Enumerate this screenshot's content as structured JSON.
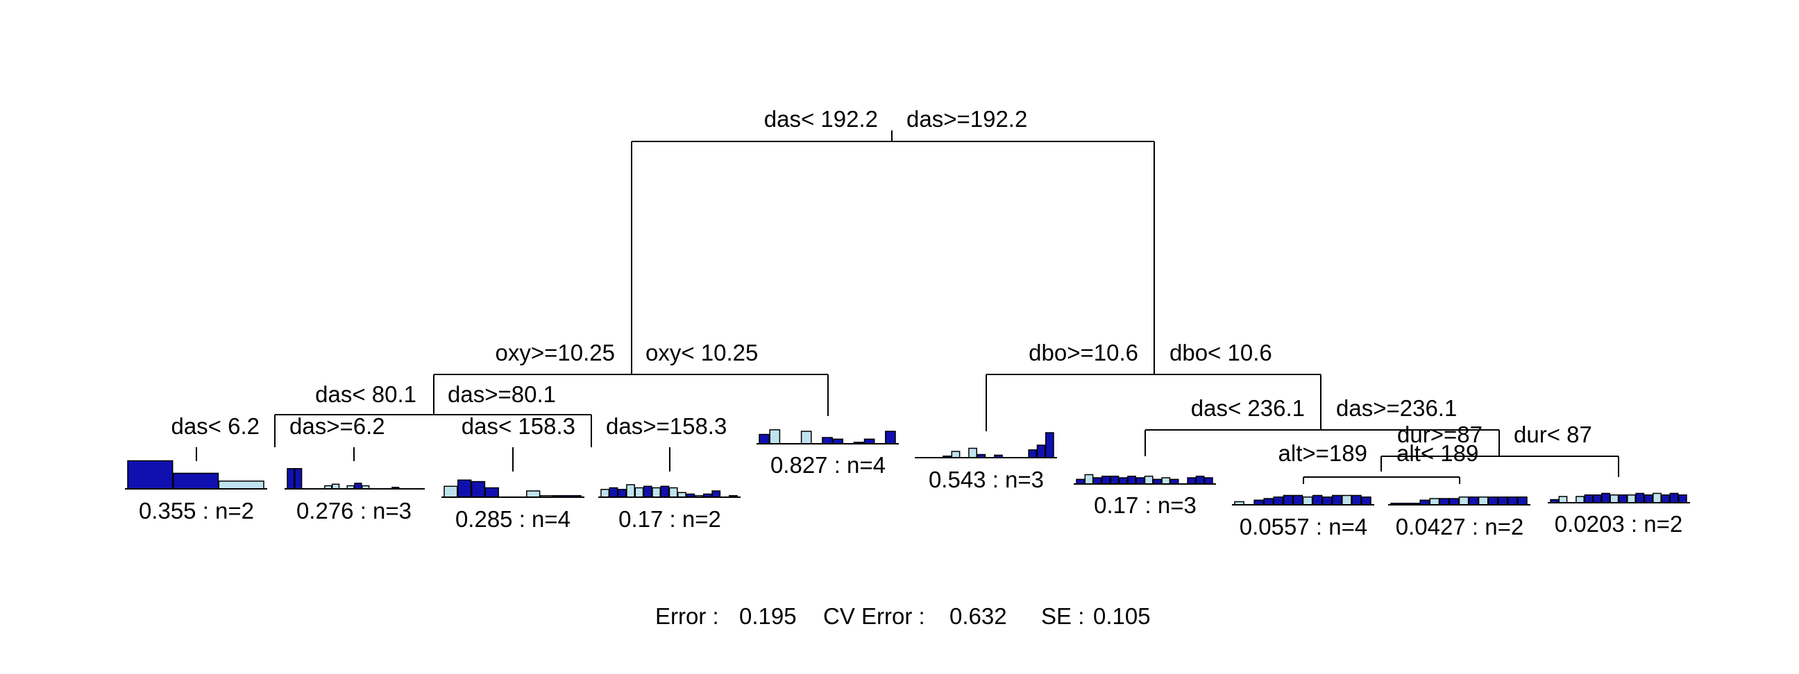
{
  "colors": {
    "dark": "#1010b0",
    "light": "#bfe3ee",
    "line": "#000000"
  },
  "splits": [
    {
      "left": "das< 192.2",
      "right": "das>=192.2"
    },
    {
      "left": "oxy>=10.25",
      "right": "oxy< 10.25"
    },
    {
      "left": "dbo>=10.6",
      "right": "dbo< 10.6"
    },
    {
      "left": "das< 80.1",
      "right": "das>=80.1"
    },
    {
      "left": "das< 236.1",
      "right": "das>=236.1"
    },
    {
      "left": "das< 6.2",
      "right": "das>=6.2"
    },
    {
      "left": "das< 158.3",
      "right": "das>=158.3"
    },
    {
      "left": "dur>=87",
      "right": "dur< 87"
    },
    {
      "left": "alt>=189",
      "right": "alt< 189"
    }
  ],
  "leaves": [
    {
      "label": "0.355 : n=2",
      "bars": [
        {
          "v": 0.9,
          "c": "dark"
        },
        {
          "v": 0.5,
          "c": "dark"
        },
        {
          "v": 0.25,
          "c": "light"
        }
      ]
    },
    {
      "label": "0.276 : n=3",
      "bars": [
        {
          "v": 0.65,
          "c": "dark"
        },
        {
          "v": 0.65,
          "c": "dark"
        },
        {
          "v": 0,
          "c": "dark"
        },
        {
          "v": 0,
          "c": "dark"
        },
        {
          "v": 0,
          "c": "dark"
        },
        {
          "v": 0.1,
          "c": "light"
        },
        {
          "v": 0.15,
          "c": "light"
        },
        {
          "v": 0,
          "c": "dark"
        },
        {
          "v": 0.1,
          "c": "light"
        },
        {
          "v": 0.18,
          "c": "dark"
        },
        {
          "v": 0.1,
          "c": "light"
        },
        {
          "v": 0,
          "c": "dark"
        },
        {
          "v": 0,
          "c": "dark"
        },
        {
          "v": 0,
          "c": "dark"
        },
        {
          "v": 0.05,
          "c": "dark"
        },
        {
          "v": 0,
          "c": "dark"
        },
        {
          "v": 0,
          "c": "dark"
        },
        {
          "v": 0,
          "c": "dark"
        }
      ]
    },
    {
      "label": "0.285 : n=4",
      "bars": [
        {
          "v": 0.35,
          "c": "light"
        },
        {
          "v": 0.55,
          "c": "dark"
        },
        {
          "v": 0.5,
          "c": "dark"
        },
        {
          "v": 0.3,
          "c": "dark"
        },
        {
          "v": 0,
          "c": "dark"
        },
        {
          "v": 0,
          "c": "dark"
        },
        {
          "v": 0.2,
          "c": "light"
        },
        {
          "v": 0.05,
          "c": "light"
        },
        {
          "v": 0.05,
          "c": "dark"
        },
        {
          "v": 0.05,
          "c": "dark"
        }
      ]
    },
    {
      "label": "0.17 : n=2",
      "bars": [
        {
          "v": 0.25,
          "c": "light"
        },
        {
          "v": 0.3,
          "c": "dark"
        },
        {
          "v": 0.25,
          "c": "dark"
        },
        {
          "v": 0.4,
          "c": "light"
        },
        {
          "v": 0.3,
          "c": "light"
        },
        {
          "v": 0.35,
          "c": "dark"
        },
        {
          "v": 0.3,
          "c": "light"
        },
        {
          "v": 0.35,
          "c": "dark"
        },
        {
          "v": 0.3,
          "c": "light"
        },
        {
          "v": 0.15,
          "c": "light"
        },
        {
          "v": 0.1,
          "c": "dark"
        },
        {
          "v": 0.05,
          "c": "light"
        },
        {
          "v": 0.1,
          "c": "dark"
        },
        {
          "v": 0.2,
          "c": "dark"
        },
        {
          "v": 0,
          "c": "dark"
        },
        {
          "v": 0.05,
          "c": "dark"
        }
      ]
    },
    {
      "label": "0.827 : n=4",
      "bars": [
        {
          "v": 0.3,
          "c": "dark"
        },
        {
          "v": 0.45,
          "c": "light"
        },
        {
          "v": 0,
          "c": "dark"
        },
        {
          "v": 0,
          "c": "dark"
        },
        {
          "v": 0.4,
          "c": "light"
        },
        {
          "v": 0,
          "c": "dark"
        },
        {
          "v": 0.2,
          "c": "dark"
        },
        {
          "v": 0.15,
          "c": "dark"
        },
        {
          "v": 0,
          "c": "dark"
        },
        {
          "v": 0.05,
          "c": "dark"
        },
        {
          "v": 0.15,
          "c": "dark"
        },
        {
          "v": 0,
          "c": "dark"
        },
        {
          "v": 0.4,
          "c": "dark"
        }
      ]
    },
    {
      "label": "0.543 : n=3",
      "bars": [
        {
          "v": 0,
          "c": "dark"
        },
        {
          "v": 0,
          "c": "dark"
        },
        {
          "v": 0,
          "c": "dark"
        },
        {
          "v": 0.05,
          "c": "dark"
        },
        {
          "v": 0.2,
          "c": "light"
        },
        {
          "v": 0,
          "c": "dark"
        },
        {
          "v": 0.3,
          "c": "light"
        },
        {
          "v": 0.1,
          "c": "dark"
        },
        {
          "v": 0,
          "c": "dark"
        },
        {
          "v": 0.08,
          "c": "dark"
        },
        {
          "v": 0,
          "c": "dark"
        },
        {
          "v": 0,
          "c": "dark"
        },
        {
          "v": 0,
          "c": "dark"
        },
        {
          "v": 0.25,
          "c": "dark"
        },
        {
          "v": 0.4,
          "c": "dark"
        },
        {
          "v": 0.8,
          "c": "dark"
        }
      ]
    },
    {
      "label": "0.17 : n=3",
      "bars": [
        {
          "v": 0.15,
          "c": "dark"
        },
        {
          "v": 0.3,
          "c": "light"
        },
        {
          "v": 0.2,
          "c": "dark"
        },
        {
          "v": 0.25,
          "c": "dark"
        },
        {
          "v": 0.25,
          "c": "dark"
        },
        {
          "v": 0.2,
          "c": "dark"
        },
        {
          "v": 0.25,
          "c": "dark"
        },
        {
          "v": 0.2,
          "c": "dark"
        },
        {
          "v": 0.25,
          "c": "light"
        },
        {
          "v": 0.15,
          "c": "dark"
        },
        {
          "v": 0.2,
          "c": "light"
        },
        {
          "v": 0.15,
          "c": "dark"
        },
        {
          "v": 0,
          "c": "dark"
        },
        {
          "v": 0.2,
          "c": "dark"
        },
        {
          "v": 0.25,
          "c": "dark"
        },
        {
          "v": 0.2,
          "c": "dark"
        }
      ]
    },
    {
      "label": "0.0557 : n=4",
      "bars": [
        {
          "v": 0.1,
          "c": "light"
        },
        {
          "v": 0,
          "c": "dark"
        },
        {
          "v": 0.15,
          "c": "dark"
        },
        {
          "v": 0.2,
          "c": "dark"
        },
        {
          "v": 0.25,
          "c": "dark"
        },
        {
          "v": 0.3,
          "c": "dark"
        },
        {
          "v": 0.3,
          "c": "dark"
        },
        {
          "v": 0.25,
          "c": "light"
        },
        {
          "v": 0.3,
          "c": "dark"
        },
        {
          "v": 0.25,
          "c": "dark"
        },
        {
          "v": 0.3,
          "c": "dark"
        },
        {
          "v": 0.3,
          "c": "light"
        },
        {
          "v": 0.3,
          "c": "dark"
        },
        {
          "v": 0.25,
          "c": "dark"
        }
      ]
    },
    {
      "label": "0.0427 : n=2",
      "bars": [
        {
          "v": 0.05,
          "c": "dark"
        },
        {
          "v": 0.05,
          "c": "dark"
        },
        {
          "v": 0.05,
          "c": "dark"
        },
        {
          "v": 0.15,
          "c": "dark"
        },
        {
          "v": 0.2,
          "c": "light"
        },
        {
          "v": 0.2,
          "c": "dark"
        },
        {
          "v": 0.2,
          "c": "dark"
        },
        {
          "v": 0.25,
          "c": "light"
        },
        {
          "v": 0.25,
          "c": "dark"
        },
        {
          "v": 0.25,
          "c": "light"
        },
        {
          "v": 0.25,
          "c": "dark"
        },
        {
          "v": 0.25,
          "c": "dark"
        },
        {
          "v": 0.25,
          "c": "dark"
        },
        {
          "v": 0.25,
          "c": "dark"
        }
      ]
    },
    {
      "label": "0.0203 : n=2",
      "bars": [
        {
          "v": 0.1,
          "c": "dark"
        },
        {
          "v": 0.2,
          "c": "light"
        },
        {
          "v": 0,
          "c": "dark"
        },
        {
          "v": 0.2,
          "c": "light"
        },
        {
          "v": 0.25,
          "c": "dark"
        },
        {
          "v": 0.25,
          "c": "dark"
        },
        {
          "v": 0.3,
          "c": "dark"
        },
        {
          "v": 0.25,
          "c": "light"
        },
        {
          "v": 0.25,
          "c": "dark"
        },
        {
          "v": 0.25,
          "c": "light"
        },
        {
          "v": 0.3,
          "c": "dark"
        },
        {
          "v": 0.25,
          "c": "dark"
        },
        {
          "v": 0.3,
          "c": "light"
        },
        {
          "v": 0.25,
          "c": "dark"
        },
        {
          "v": 0.3,
          "c": "dark"
        },
        {
          "v": 0.25,
          "c": "dark"
        }
      ]
    }
  ],
  "footer": {
    "error_label": "Error :",
    "error_value": "0.195",
    "cv_label": "CV Error :",
    "cv_value": "0.632",
    "se_label": "SE :",
    "se_value": "0.105"
  }
}
